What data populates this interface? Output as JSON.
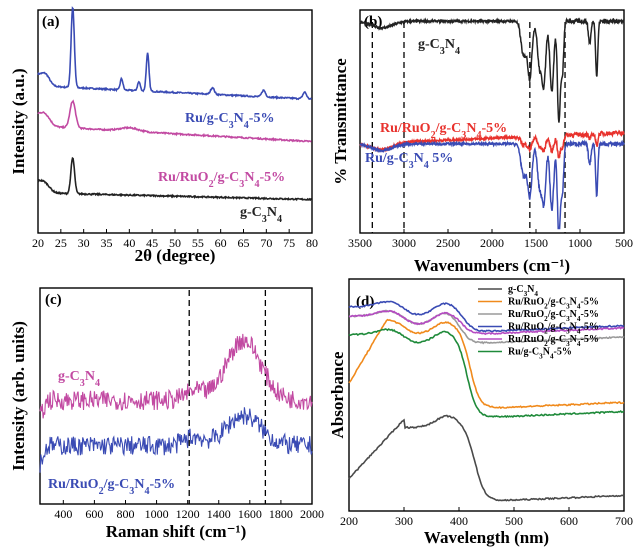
{
  "chart_data": [
    {
      "type": "line",
      "panel_label": "(a)",
      "xlabel": "2θ (degree)",
      "ylabel": "Intensity (a.u.)",
      "xlim": [
        20,
        80
      ],
      "xticks": [
        "20",
        "25",
        "30",
        "35",
        "40",
        "45",
        "50",
        "55",
        "60",
        "65",
        "70",
        "75",
        "80"
      ],
      "series": [
        {
          "name": "Ru/g-C3N4-5%",
          "color": "#3a4bb4",
          "base": 0.66,
          "end": 0.6,
          "peaks": [
            [
              21.8,
              0.03,
              0.8
            ],
            [
              27.6,
              0.36,
              0.35
            ],
            [
              38.3,
              0.05,
              0.3
            ],
            [
              42.1,
              0.04,
              0.3
            ],
            [
              44.0,
              0.17,
              0.3
            ],
            [
              58.2,
              0.03,
              0.4
            ],
            [
              69.4,
              0.03,
              0.4
            ],
            [
              78.4,
              0.03,
              0.4
            ]
          ]
        },
        {
          "name": "Ru/RuO2/g-C3N4-5%",
          "color": "#c24aa2",
          "base": 0.48,
          "end": 0.41,
          "peaks": [
            [
              21.8,
              0.03,
              1.0
            ],
            [
              27.6,
              0.12,
              0.6
            ],
            [
              40.0,
              0.015,
              2.0
            ]
          ]
        },
        {
          "name": "g-C3N4",
          "color": "#222222",
          "base": 0.18,
          "end": 0.15,
          "peaks": [
            [
              21.8,
              0.02,
              1.0
            ],
            [
              27.6,
              0.16,
              0.4
            ],
            [
              13.0,
              0.0,
              1.0
            ]
          ]
        }
      ]
    },
    {
      "type": "line",
      "panel_label": "(b)",
      "xlabel": "Wavenumbers (cm⁻¹)",
      "ylabel": "% Transmittance",
      "xlim": [
        3500,
        500
      ],
      "xticks": [
        "3500",
        "3000",
        "2500",
        "2000",
        "1500",
        "1000",
        "500"
      ],
      "dashed_lines": [
        3360,
        3000,
        1570,
        1170
      ],
      "series": [
        {
          "name": "g-C3N4",
          "color": "#222222",
          "base": 0.95,
          "amp": 0.45
        },
        {
          "name": "Ru/RuO2/g-C3N4-5%",
          "color": "#e8322d",
          "base": 0.45,
          "amp": 0.1
        },
        {
          "name": "Ru/g-C3N4 5%",
          "color": "#3a4bb4",
          "base": 0.4,
          "amp": 0.42
        }
      ]
    },
    {
      "type": "line",
      "panel_label": "(c)",
      "xlabel": "Raman shift (cm⁻¹)",
      "ylabel": "Intensity (arb. units)",
      "xlim": [
        250,
        2000
      ],
      "xticks": [
        "400",
        "600",
        "800",
        "1000",
        "1200",
        "1400",
        "1600",
        "1800",
        "2000"
      ],
      "dashed_lines": [
        1210,
        1700
      ],
      "series": [
        {
          "name": "g-C3N4",
          "color": "#c24aa2",
          "base": 0.48,
          "peak": 0.28
        },
        {
          "name": "Ru/RuO2/g-C3N4-5%",
          "color": "#3a4bb4",
          "base": 0.27,
          "peak": 0.14
        }
      ]
    },
    {
      "type": "line",
      "panel_label": "(d)",
      "xlabel": "Wavelength (nm)",
      "ylabel": "Absorbance",
      "xlim": [
        200,
        700
      ],
      "xticks": [
        "200",
        "300",
        "400",
        "500",
        "600",
        "700"
      ],
      "series": [
        {
          "name": "g-C3N4",
          "color": "#4a4a4a",
          "peak": 0.42,
          "tail": 0.04,
          "edge": 430
        },
        {
          "name": "Ru/RuO2/g-C3N4-5%",
          "color": "#f08a1c",
          "peak": 0.8,
          "tail": 0.44,
          "edge": 420
        },
        {
          "name": "Ru/RuO2/g-C3N4-5%",
          "color": "#9a9a9a",
          "peak": 0.84,
          "tail": 0.72,
          "edge": 405
        },
        {
          "name": "Ru/RuO2/g-C3N4-5%",
          "color": "#3a4bb4",
          "peak": 0.88,
          "tail": 0.77,
          "edge": 410
        },
        {
          "name": "Ru/RuO2/g-C3N4-5%",
          "color": "#b54bc2",
          "peak": 0.84,
          "tail": 0.76,
          "edge": 408
        },
        {
          "name": "Ru/g-C3N4-5%",
          "color": "#1f8a3a",
          "peak": 0.76,
          "tail": 0.4,
          "edge": 415
        }
      ]
    }
  ],
  "annotations": {
    "a_ru": "Ru/g-C3N4-5%",
    "a_ruo2": "Ru/RuO2/g-C3N4-5%",
    "a_gcn": "g-C3N4",
    "b_gcn": "g-C3N4",
    "b_ruo2": "Ru/RuO2/g-C3N4-5%",
    "b_ru": "Ru/g-C3N4 5%",
    "c_gcn": "g-C3N4",
    "c_ruo2": "Ru/RuO2/g-C3N4-5%"
  }
}
